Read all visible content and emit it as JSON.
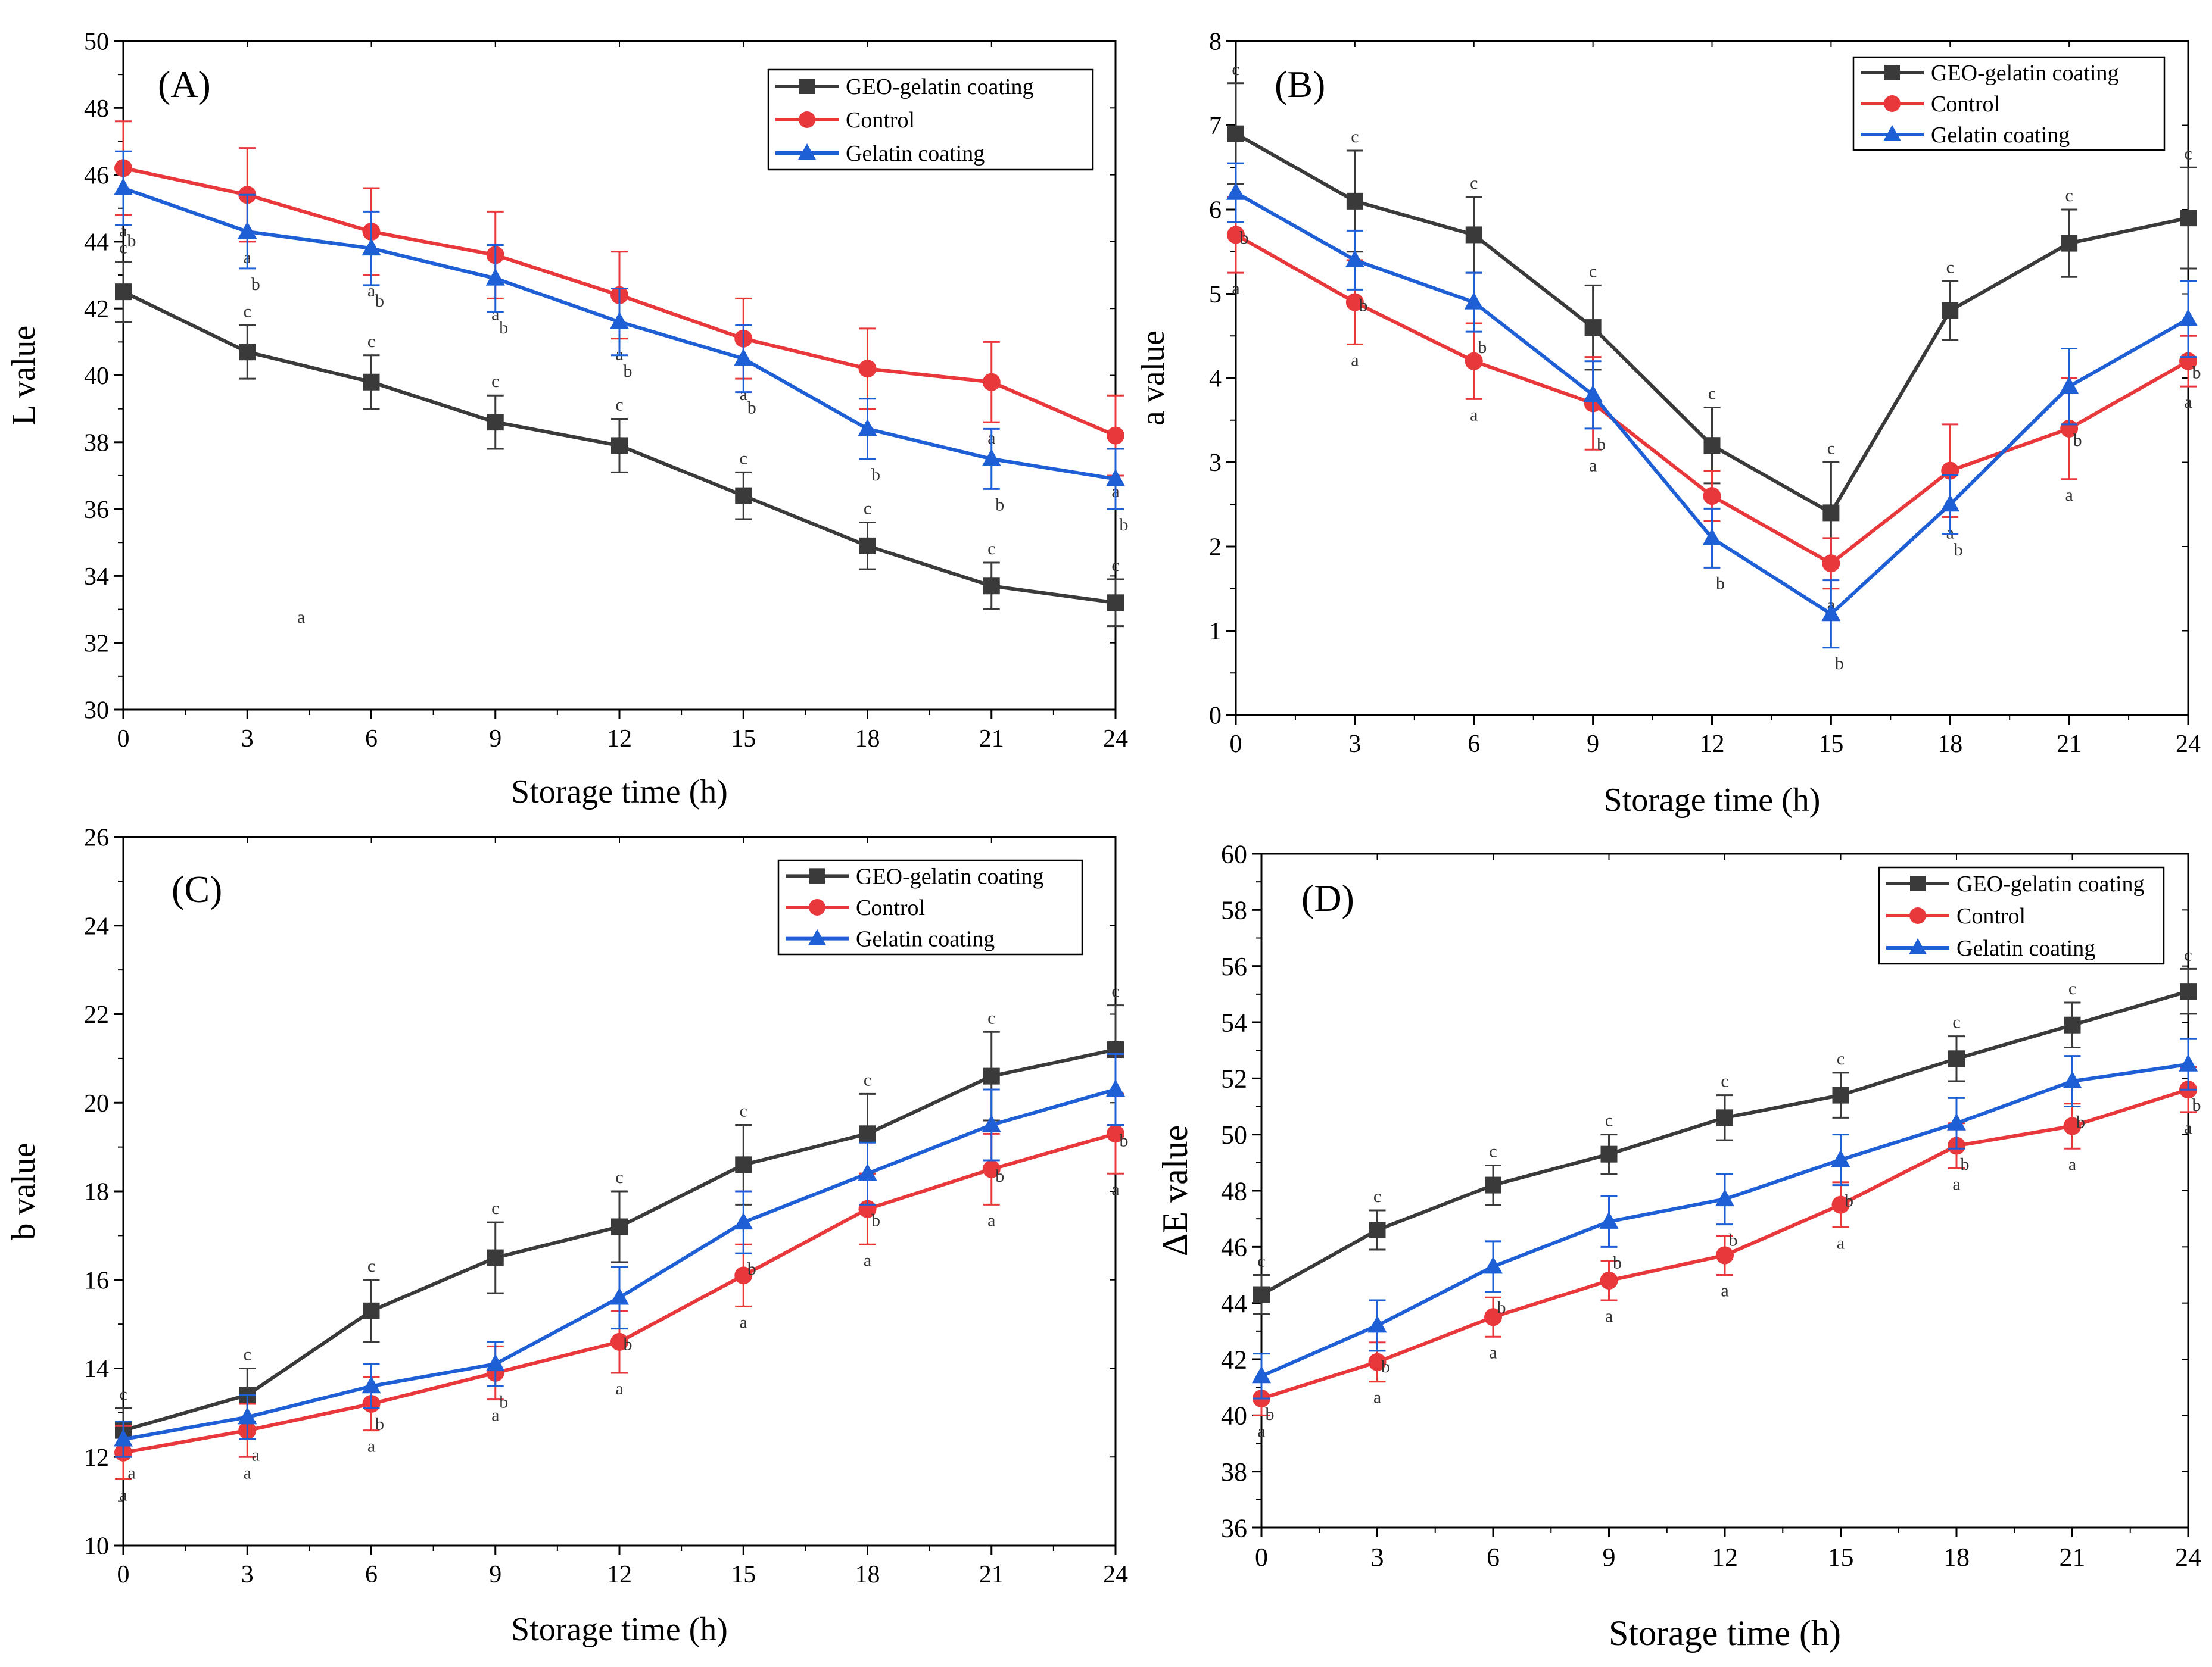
{
  "figure": {
    "panels": 4,
    "colors": {
      "geo": "#3a3a3a",
      "control": "#e8383b",
      "gelatin": "#1f5fd6",
      "axis": "#000000"
    }
  },
  "chart_data": [
    {
      "type": "line",
      "label": "(A)",
      "xlabel": "Storage time (h)",
      "ylabel": "L value",
      "x": [
        0,
        3,
        6,
        9,
        12,
        15,
        18,
        21,
        24
      ],
      "xlim": [
        0,
        24
      ],
      "ylim": [
        30,
        50
      ],
      "yticks": [
        30,
        32,
        34,
        36,
        38,
        40,
        42,
        44,
        46,
        48,
        50
      ],
      "x_tick_labels": [
        "0",
        "3",
        "6",
        "9",
        "12",
        "15",
        "18",
        "21",
        "24"
      ],
      "legend": [
        "GEO-gelatin coating",
        "Control",
        "Gelatin coating"
      ],
      "legend_position": "top-right",
      "series": [
        {
          "name": "GEO-gelatin coating",
          "marker": "square",
          "values": [
            42.5,
            40.7,
            39.8,
            38.6,
            37.9,
            36.4,
            34.9,
            33.7,
            33.2
          ],
          "errors": [
            0.9,
            0.8,
            0.8,
            0.8,
            0.8,
            0.7,
            0.7,
            0.7,
            0.7
          ],
          "letters": [
            "c",
            "c",
            "c",
            "c",
            "c",
            "c",
            "c",
            "c",
            "c"
          ]
        },
        {
          "name": "Control",
          "marker": "circle",
          "values": [
            46.2,
            45.4,
            44.3,
            43.6,
            42.4,
            41.1,
            40.2,
            39.8,
            38.2
          ],
          "errors": [
            1.4,
            1.4,
            1.3,
            1.3,
            1.3,
            1.2,
            1.2,
            1.2,
            1.2
          ],
          "letters": [
            "a",
            "a",
            "a",
            "a",
            "a",
            "a",
            "a",
            "a",
            "a"
          ]
        },
        {
          "name": "Gelatin coating",
          "marker": "triangle",
          "values": [
            45.6,
            44.3,
            43.8,
            42.9,
            41.6,
            40.5,
            38.4,
            37.5,
            36.9
          ],
          "errors": [
            1.1,
            1.1,
            1.1,
            1.0,
            1.0,
            1.0,
            0.9,
            0.9,
            0.9
          ],
          "letters": [
            "b",
            "b",
            "b",
            "b",
            "b",
            "b",
            "b",
            "b",
            "b"
          ]
        }
      ],
      "annotations": [
        {
          "text": "a",
          "x": 4.3,
          "y": 32.6
        }
      ]
    },
    {
      "type": "line",
      "label": "(B)",
      "xlabel": "Storage time (h)",
      "ylabel": "a value",
      "x": [
        0,
        3,
        6,
        9,
        12,
        15,
        18,
        21,
        24
      ],
      "xlim": [
        0,
        24
      ],
      "ylim": [
        0,
        8
      ],
      "yticks": [
        0,
        1,
        2,
        3,
        4,
        5,
        6,
        7,
        8
      ],
      "x_tick_labels": [
        "0",
        "3",
        "6",
        "9",
        "12",
        "15",
        "18",
        "21",
        "24"
      ],
      "legend": [
        "GEO-gelatin coating",
        "Control",
        "Gelatin coating"
      ],
      "legend_position": "top-right",
      "series": [
        {
          "name": "GEO-gelatin coating",
          "marker": "square",
          "values": [
            6.9,
            6.1,
            5.7,
            4.6,
            3.2,
            2.4,
            4.8,
            5.6,
            5.9
          ],
          "errors": [
            0.6,
            0.6,
            0.45,
            0.5,
            0.45,
            0.6,
            0.35,
            0.4,
            0.6
          ],
          "letters": [
            "c",
            "c",
            "c",
            "c",
            "c",
            "c",
            "c",
            "c",
            "c"
          ]
        },
        {
          "name": "Control",
          "marker": "circle",
          "values": [
            5.7,
            4.9,
            4.2,
            3.7,
            2.6,
            1.8,
            2.9,
            3.4,
            4.2
          ],
          "errors": [
            0.45,
            0.5,
            0.45,
            0.55,
            0.3,
            0.3,
            0.55,
            0.6,
            0.3
          ],
          "letters": [
            "a",
            "a",
            "a",
            "a",
            "a",
            "a",
            "a",
            "a",
            "a"
          ]
        },
        {
          "name": "Gelatin coating",
          "marker": "triangle",
          "values": [
            6.2,
            5.4,
            4.9,
            3.8,
            2.1,
            1.2,
            2.5,
            3.9,
            4.7
          ],
          "errors": [
            0.35,
            0.35,
            0.35,
            0.4,
            0.35,
            0.4,
            0.35,
            0.45,
            0.45
          ],
          "letters": [
            "b",
            "b",
            "b",
            "b",
            "b",
            "b",
            "b",
            "b",
            "b"
          ]
        }
      ],
      "annotations": []
    },
    {
      "type": "line",
      "label": "(C)",
      "xlabel": "Storage time (h)",
      "ylabel": "b value",
      "x": [
        0,
        3,
        6,
        9,
        12,
        15,
        18,
        21,
        24
      ],
      "xlim": [
        0,
        24
      ],
      "ylim": [
        10,
        26
      ],
      "yticks": [
        10,
        12,
        14,
        16,
        18,
        20,
        22,
        24,
        26
      ],
      "x_tick_labels": [
        "0",
        "3",
        "6",
        "9",
        "12",
        "15",
        "18",
        "21",
        "24"
      ],
      "legend": [
        "GEO-gelatin coating",
        "Control",
        "Gelatin coating"
      ],
      "legend_position": "top-right",
      "series": [
        {
          "name": "GEO-gelatin coating",
          "marker": "square",
          "values": [
            12.6,
            13.4,
            15.3,
            16.5,
            17.2,
            18.6,
            19.3,
            20.6,
            21.2
          ],
          "errors": [
            0.5,
            0.6,
            0.7,
            0.8,
            0.8,
            0.9,
            0.9,
            1.0,
            1.0
          ],
          "letters": [
            "c",
            "c",
            "c",
            "c",
            "c",
            "c",
            "c",
            "c",
            "c"
          ]
        },
        {
          "name": "Control",
          "marker": "circle",
          "values": [
            12.1,
            12.6,
            13.2,
            13.9,
            14.6,
            16.1,
            17.6,
            18.5,
            19.3
          ],
          "errors": [
            0.6,
            0.6,
            0.6,
            0.6,
            0.7,
            0.7,
            0.8,
            0.8,
            0.9
          ],
          "letters": [
            "a",
            "a",
            "a",
            "a",
            "a",
            "a",
            "a",
            "a",
            "a"
          ]
        },
        {
          "name": "Gelatin coating",
          "marker": "triangle",
          "values": [
            12.4,
            12.9,
            13.6,
            14.1,
            15.6,
            17.3,
            18.4,
            19.5,
            20.3
          ],
          "errors": [
            0.4,
            0.5,
            0.5,
            0.5,
            0.7,
            0.7,
            0.7,
            0.8,
            0.8
          ],
          "letters": [
            "a",
            "a",
            "b",
            "b",
            "b",
            "b",
            "b",
            "b",
            "b"
          ]
        }
      ],
      "annotations": []
    },
    {
      "type": "line",
      "label": "(D)",
      "xlabel": "Storage time (h)",
      "ylabel": "ΔE value",
      "x": [
        0,
        3,
        6,
        9,
        12,
        15,
        18,
        21,
        24
      ],
      "xlim": [
        0,
        24
      ],
      "ylim": [
        36,
        60
      ],
      "yticks": [
        36,
        38,
        40,
        42,
        44,
        46,
        48,
        50,
        52,
        54,
        56,
        58,
        60
      ],
      "x_tick_labels": [
        "0",
        "3",
        "6",
        "9",
        "12",
        "15",
        "18",
        "21",
        "24"
      ],
      "legend": [
        "GEO-gelatin coating",
        "Control",
        "Gelatin coating"
      ],
      "legend_position": "top-right",
      "series": [
        {
          "name": "GEO-gelatin coating",
          "marker": "square",
          "values": [
            44.3,
            46.6,
            48.2,
            49.3,
            50.6,
            51.4,
            52.7,
            53.9,
            55.1
          ],
          "errors": [
            0.7,
            0.7,
            0.7,
            0.7,
            0.8,
            0.8,
            0.8,
            0.8,
            0.8
          ],
          "letters": [
            "c",
            "c",
            "c",
            "c",
            "c",
            "c",
            "c",
            "c",
            "c"
          ]
        },
        {
          "name": "Control",
          "marker": "circle",
          "values": [
            40.6,
            41.9,
            43.5,
            44.8,
            45.7,
            47.5,
            49.6,
            50.3,
            51.6
          ],
          "errors": [
            0.6,
            0.7,
            0.7,
            0.7,
            0.7,
            0.8,
            0.8,
            0.8,
            0.8
          ],
          "letters": [
            "a",
            "a",
            "a",
            "a",
            "a",
            "a",
            "a",
            "a",
            "a"
          ]
        },
        {
          "name": "Gelatin coating",
          "marker": "triangle",
          "values": [
            41.4,
            43.2,
            45.3,
            46.9,
            47.7,
            49.1,
            50.4,
            51.9,
            52.5
          ],
          "errors": [
            0.8,
            0.9,
            0.9,
            0.9,
            0.9,
            0.9,
            0.9,
            0.9,
            0.9
          ],
          "letters": [
            "b",
            "b",
            "b",
            "b",
            "b",
            "b",
            "b",
            "b",
            "b"
          ]
        }
      ],
      "annotations": []
    }
  ]
}
